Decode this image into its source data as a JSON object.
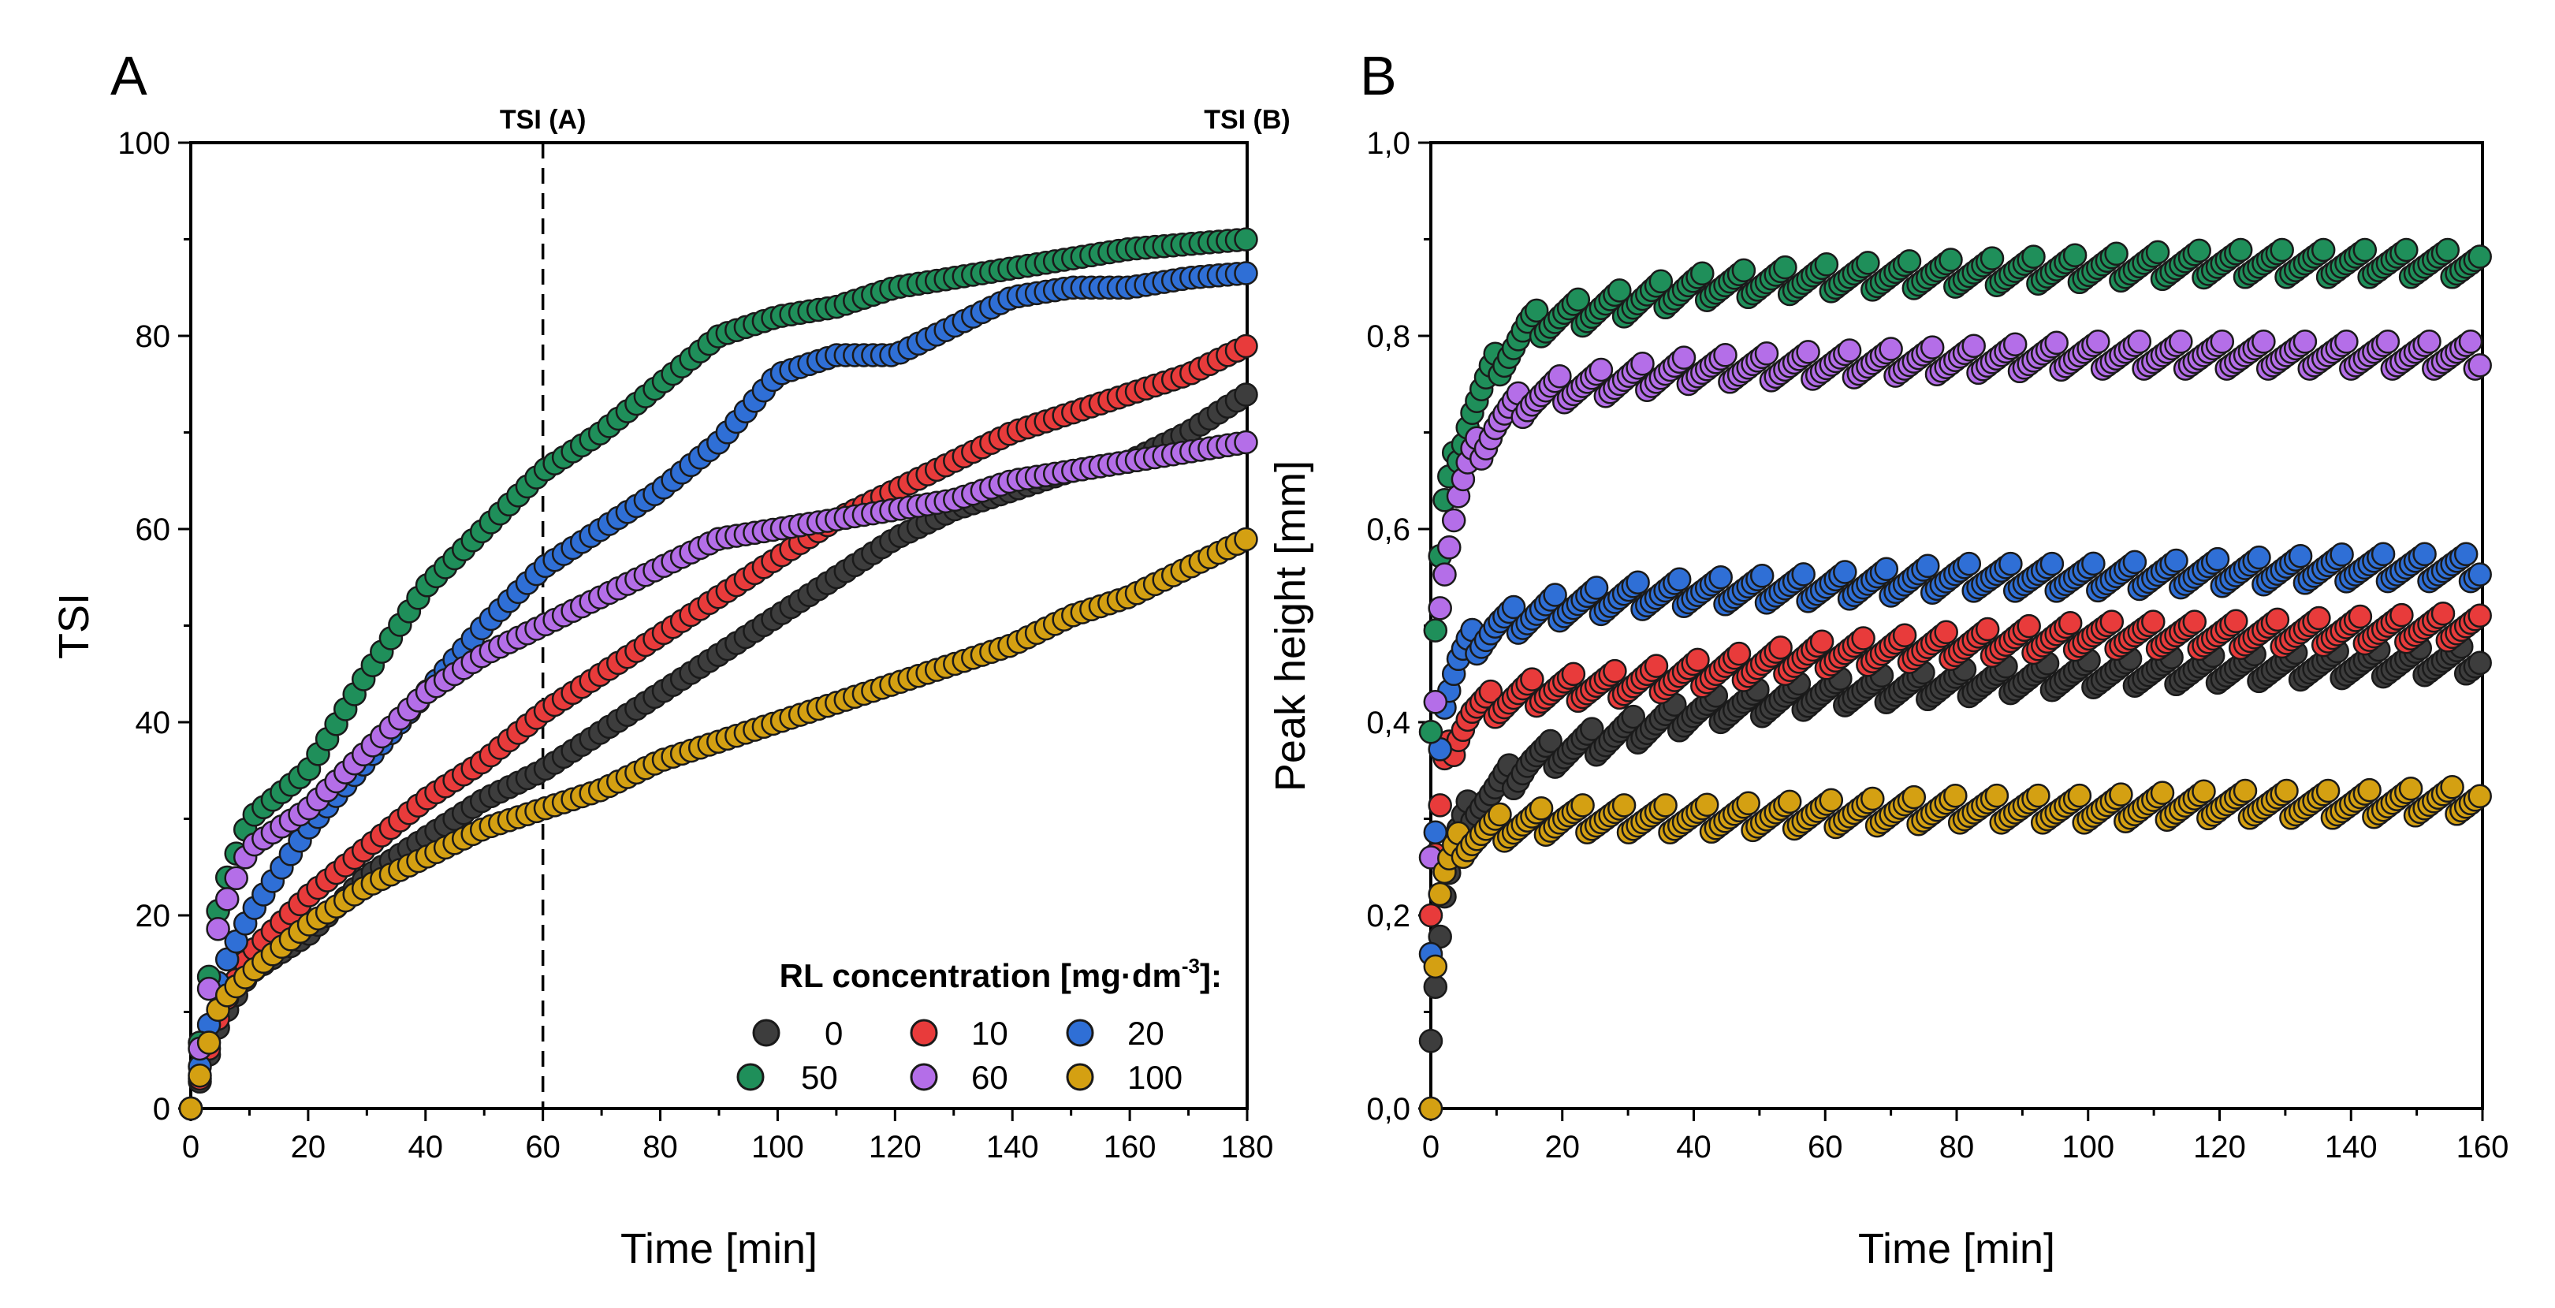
{
  "chart_data": [
    {
      "type": "scatter",
      "panel": "A",
      "xlabel": "Time [min]",
      "ylabel": "TSI",
      "xlim": [
        0,
        180
      ],
      "ylim": [
        0,
        100
      ],
      "xticks": [
        "0",
        "20",
        "40",
        "60",
        "80",
        "100",
        "120",
        "140",
        "160",
        "180"
      ],
      "yticks": [
        "0",
        "20",
        "40",
        "60",
        "80",
        "100"
      ],
      "vlines": [
        {
          "x": 60,
          "label": "TSI (A)"
        },
        {
          "x": 180,
          "label": "TSI (B)"
        }
      ],
      "legend": {
        "position": "bottom-right",
        "title": "RL concentration [mg·dm",
        "title_sup": "-3",
        "title_suffix": "]:"
      },
      "series": [
        {
          "name": "0",
          "color": "#3d3d3d",
          "x": [
            0,
            5,
            10,
            20,
            30,
            40,
            50,
            60,
            70,
            80,
            90,
            100,
            110,
            120,
            130,
            140,
            150,
            160,
            170,
            180
          ],
          "y": [
            0,
            9,
            14,
            18,
            24,
            28,
            32,
            35,
            39,
            43,
            47,
            51,
            55,
            59,
            62,
            64,
            66,
            67,
            70,
            74
          ]
        },
        {
          "name": "10",
          "color": "#e83b3b",
          "x": [
            0,
            5,
            10,
            20,
            30,
            40,
            50,
            60,
            70,
            80,
            90,
            100,
            110,
            120,
            130,
            140,
            150,
            160,
            170,
            180
          ],
          "y": [
            0,
            10,
            16,
            22,
            27,
            32,
            36,
            41,
            45,
            49,
            53,
            57,
            61,
            64,
            67,
            70,
            72,
            74,
            76,
            79
          ]
        },
        {
          "name": "20",
          "color": "#2f6fd6",
          "x": [
            0,
            5,
            10,
            20,
            30,
            40,
            50,
            60,
            70,
            80,
            90,
            100,
            110,
            120,
            130,
            140,
            150,
            160,
            170,
            180
          ],
          "y": [
            0,
            14,
            20,
            29,
            36,
            43,
            50,
            56,
            60,
            64,
            69,
            76,
            78,
            78,
            81,
            84,
            85,
            85,
            86,
            86.5
          ]
        },
        {
          "name": "50",
          "color": "#1f8f5a",
          "x": [
            0,
            5,
            10,
            20,
            30,
            40,
            50,
            60,
            70,
            80,
            90,
            100,
            110,
            120,
            130,
            140,
            150,
            160,
            170,
            180
          ],
          "y": [
            0,
            22,
            30,
            35,
            45,
            54,
            60,
            66,
            70,
            75,
            80,
            82,
            83,
            85,
            86,
            87,
            88,
            89,
            89.5,
            90
          ]
        },
        {
          "name": "60",
          "color": "#b46ee8",
          "x": [
            0,
            5,
            10,
            20,
            30,
            40,
            50,
            60,
            70,
            80,
            90,
            100,
            110,
            120,
            130,
            140,
            150,
            160,
            170,
            180
          ],
          "y": [
            0,
            20,
            27,
            31,
            37,
            43,
            47,
            50,
            53,
            56,
            59,
            60,
            61,
            62,
            63,
            65,
            66,
            67,
            68,
            69
          ]
        },
        {
          "name": "100",
          "color": "#d4a012",
          "x": [
            0,
            5,
            10,
            20,
            30,
            40,
            50,
            60,
            70,
            80,
            90,
            100,
            110,
            120,
            130,
            140,
            150,
            160,
            170,
            180
          ],
          "y": [
            0,
            11,
            14,
            19,
            23,
            26,
            29,
            31,
            33,
            36,
            38,
            40,
            42,
            44,
            46,
            48,
            51,
            53,
            56,
            59
          ]
        }
      ]
    },
    {
      "type": "scatter",
      "panel": "B",
      "xlabel": "Time [min]",
      "ylabel": "Peak height [mm]",
      "xlim": [
        0,
        160
      ],
      "ylim": [
        0,
        1.0
      ],
      "xticks": [
        "0",
        "20",
        "40",
        "60",
        "80",
        "100",
        "120",
        "140",
        "160"
      ],
      "yticks": [
        "0,0",
        "0,2",
        "0,4",
        "0,6",
        "0,8",
        "1,0"
      ],
      "series": [
        {
          "name": "0",
          "color": "#3d3d3d",
          "x": [
            0,
            1,
            2,
            4,
            6,
            10,
            15,
            20,
            30,
            40,
            60,
            80,
            100,
            120,
            140,
            160
          ],
          "y": [
            0.07,
            0.15,
            0.22,
            0.28,
            0.31,
            0.33,
            0.36,
            0.37,
            0.39,
            0.41,
            0.43,
            0.44,
            0.45,
            0.455,
            0.46,
            0.465
          ]
        },
        {
          "name": "10",
          "color": "#e83b3b",
          "x": [
            0,
            1,
            2,
            4,
            6,
            10,
            15,
            20,
            30,
            40,
            60,
            80,
            100,
            120,
            140,
            160
          ],
          "y": [
            0.2,
            0.29,
            0.35,
            0.39,
            0.41,
            0.42,
            0.43,
            0.435,
            0.44,
            0.45,
            0.47,
            0.48,
            0.49,
            0.49,
            0.495,
            0.5
          ]
        },
        {
          "name": "20",
          "color": "#2f6fd6",
          "x": [
            0,
            1,
            2,
            4,
            6,
            10,
            15,
            20,
            30,
            40,
            60,
            80,
            100,
            120,
            140,
            160
          ],
          "y": [
            0.16,
            0.34,
            0.42,
            0.46,
            0.48,
            0.5,
            0.51,
            0.52,
            0.53,
            0.535,
            0.54,
            0.55,
            0.55,
            0.555,
            0.56,
            0.56
          ]
        },
        {
          "name": "50",
          "color": "#1f8f5a",
          "x": [
            0,
            1,
            2,
            4,
            6,
            10,
            15,
            20,
            30,
            40,
            60,
            80,
            100,
            120,
            140,
            160
          ],
          "y": [
            0.39,
            0.54,
            0.62,
            0.68,
            0.72,
            0.77,
            0.81,
            0.82,
            0.835,
            0.85,
            0.86,
            0.865,
            0.87,
            0.875,
            0.875,
            0.875
          ]
        },
        {
          "name": "60",
          "color": "#b46ee8",
          "x": [
            0,
            1,
            2,
            4,
            6,
            10,
            15,
            20,
            30,
            40,
            60,
            80,
            100,
            120,
            140,
            160
          ],
          "y": [
            0.26,
            0.49,
            0.56,
            0.63,
            0.67,
            0.71,
            0.735,
            0.745,
            0.755,
            0.765,
            0.77,
            0.775,
            0.78,
            0.78,
            0.78,
            0.78
          ]
        },
        {
          "name": "100",
          "color": "#d4a012",
          "x": [
            0,
            1,
            2,
            4,
            6,
            10,
            15,
            20,
            30,
            40,
            60,
            80,
            100,
            120,
            140,
            160
          ],
          "y": [
            0.0,
            0.21,
            0.24,
            0.27,
            0.28,
            0.29,
            0.295,
            0.3,
            0.3,
            0.3,
            0.305,
            0.31,
            0.31,
            0.315,
            0.315,
            0.32
          ]
        }
      ]
    }
  ]
}
